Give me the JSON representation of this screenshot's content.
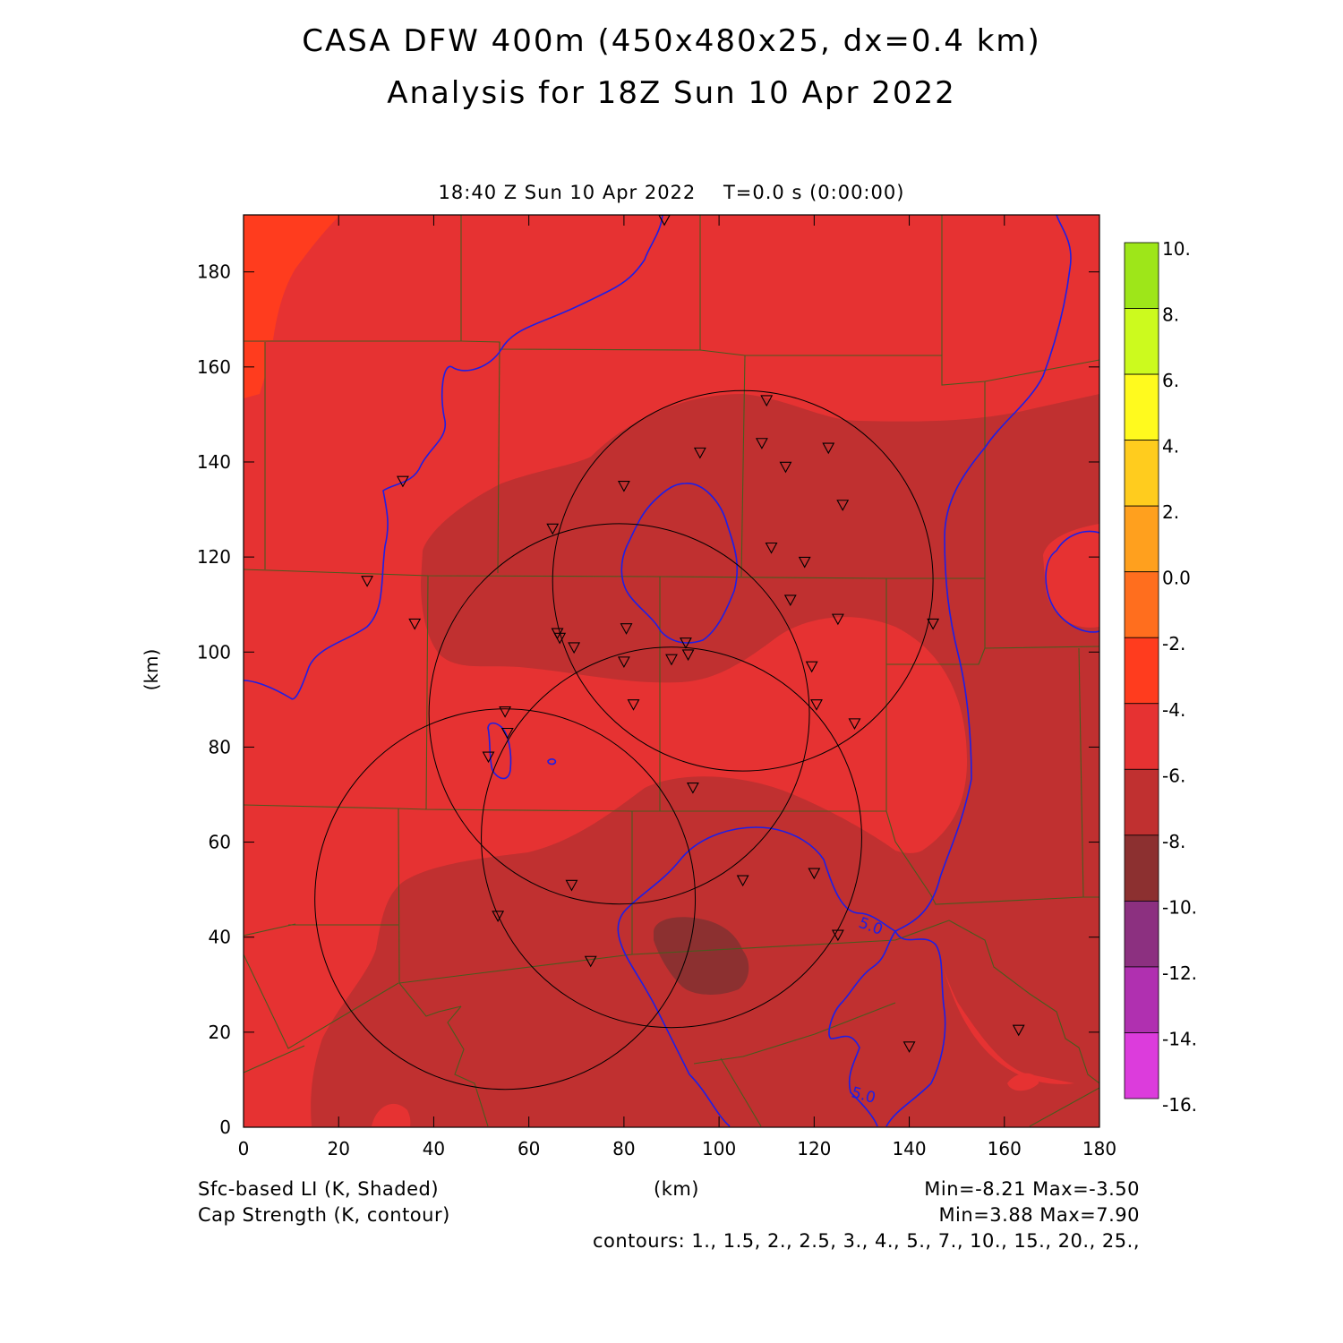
{
  "title_line1": "CASA DFW 400m (450x480x25, dx=0.4 km)",
  "title_line2": "Analysis for 18Z Sun 10 Apr 2022",
  "valid_time": "18:40 Z Sun 10 Apr 2022    T=0.0 s (0:00:00)",
  "axes": {
    "x_ticks": [
      "0",
      "20",
      "40",
      "60",
      "80",
      "100",
      "120",
      "140",
      "160",
      "180"
    ],
    "y_ticks": [
      "0",
      "20",
      "40",
      "60",
      "80",
      "100",
      "120",
      "140",
      "160",
      "180"
    ],
    "x_unit": "(km)",
    "y_unit": "(km)",
    "xlim": [
      0,
      180
    ],
    "ylim": [
      0,
      192
    ]
  },
  "colorbar": {
    "labels": [
      "10.",
      "8.",
      "6.",
      "4.",
      "2.",
      "0.0",
      "-2.",
      "-4.",
      "-6.",
      "-8.",
      "-10.",
      "-12.",
      "-14.",
      "-16."
    ],
    "colors": [
      "#9ee619",
      "#ccfa1e",
      "#fffa1e",
      "#ffcc1e",
      "#ffa01e",
      "#ff6e1e",
      "#ff3c1e",
      "#e63232",
      "#c03030",
      "#8c3030",
      "#8c3080",
      "#b030b0",
      "#dc3cdc"
    ]
  },
  "field_colors": {
    "lt_minus8": "#8c3030",
    "minus8_minus6": "#c03030",
    "minus6_minus4": "#e63232",
    "minus4_minus2": "#ff3c1e",
    "boundaries": "#4a5a1e",
    "cap_contour": "#1e1ee6",
    "radar_rings": "#000000"
  },
  "contour_label": "5.0",
  "footer": {
    "shaded_label": "Sfc-based LI (K, Shaded)",
    "contour_label": "Cap Strength (K, contour)",
    "x_unit": "(km)",
    "shaded_minmax": "Min=-8.21 Max=-3.50",
    "contour_minmax": "Min=3.88 Max=7.90",
    "contour_levels": "contours: 1., 1.5, 2., 2.5, 3., 4., 5., 7., 10., 15., 20., 25.,"
  },
  "stations_km": [
    [
      88.5,
      191
    ],
    [
      110,
      153
    ],
    [
      96,
      142
    ],
    [
      109,
      144
    ],
    [
      114,
      139
    ],
    [
      123,
      143
    ],
    [
      126,
      131
    ],
    [
      80,
      135
    ],
    [
      33.5,
      136
    ],
    [
      65,
      126
    ],
    [
      111,
      122
    ],
    [
      118,
      119
    ],
    [
      115,
      111
    ],
    [
      125,
      107
    ],
    [
      145,
      106
    ],
    [
      26,
      115
    ],
    [
      36,
      106
    ],
    [
      66,
      104
    ],
    [
      66.5,
      103
    ],
    [
      69.5,
      101
    ],
    [
      80.5,
      105
    ],
    [
      93,
      102
    ],
    [
      80,
      98
    ],
    [
      90,
      98.5
    ],
    [
      93.5,
      99.5
    ],
    [
      119.5,
      97
    ],
    [
      82,
      89
    ],
    [
      120.5,
      89
    ],
    [
      128.5,
      85
    ],
    [
      55,
      87.5
    ],
    [
      55.5,
      83
    ],
    [
      51.5,
      78
    ],
    [
      94.5,
      71.5
    ],
    [
      69,
      51
    ],
    [
      105,
      52
    ],
    [
      120,
      53.5
    ],
    [
      53.5,
      44.5
    ],
    [
      125,
      40.5
    ],
    [
      73,
      35
    ],
    [
      140,
      17
    ],
    [
      163,
      20.5
    ]
  ],
  "radar_rings_km": [
    {
      "cx": 105,
      "cy": 115,
      "r": 40
    },
    {
      "cx": 79,
      "cy": 87,
      "r": 40
    },
    {
      "cx": 90,
      "cy": 61,
      "r": 40
    },
    {
      "cx": 55,
      "cy": 48,
      "r": 40
    }
  ]
}
